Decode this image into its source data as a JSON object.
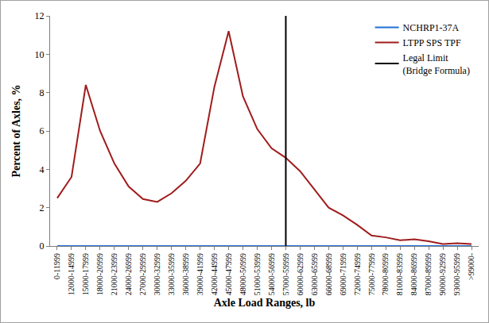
{
  "chart_data": {
    "type": "line",
    "x_label": "Axle Load Ranges, lb",
    "y_label": "Percent of Axles, %",
    "categories": [
      "0-11999",
      "12000-14999",
      "15000-17999",
      "18000-20999",
      "21000-23999",
      "24000-26999",
      "27000-29999",
      "30000-32999",
      "33000-35999",
      "36000-38999",
      "39000-41999",
      "42000-44999",
      "45000-47999",
      "48000-50999",
      "51000-53999",
      "54000-56999",
      "57000-59999",
      "60000-62999",
      "63000-65999",
      "66000-68999",
      "69000-71999",
      "72000-74999",
      "75000-77999",
      "78000-80999",
      "81000-83999",
      "84000-86999",
      "87000-89999",
      "90000-92999",
      "93000-95999",
      ">99000-"
    ],
    "series": [
      {
        "name": "NCHRP1-37A",
        "color": "#1f6fd6",
        "values": [
          0,
          0,
          0,
          0,
          0,
          0,
          0,
          0,
          0,
          0,
          0,
          0,
          0,
          0,
          0,
          0,
          0,
          0,
          0,
          0,
          0,
          0,
          0,
          0,
          0,
          0,
          0,
          0,
          0,
          0
        ]
      },
      {
        "name": "LTPP SPS TPF",
        "color": "#a01c1c",
        "values": [
          2.5,
          3.6,
          8.4,
          6.0,
          4.3,
          3.1,
          2.45,
          2.3,
          2.75,
          3.4,
          4.3,
          8.3,
          11.2,
          7.8,
          6.1,
          5.1,
          4.6,
          3.9,
          2.95,
          2.0,
          1.6,
          1.1,
          0.55,
          0.45,
          0.3,
          0.35,
          0.25,
          0.1,
          0.15,
          0.1
        ]
      },
      {
        "name": "Legal Limit\n(Bridge Formula)",
        "color": "#000000",
        "type": "vline",
        "x": "57000-59999"
      }
    ],
    "ylim": [
      0,
      12
    ],
    "yticks": [
      0,
      2,
      4,
      6,
      8,
      10,
      12
    ],
    "grid": false,
    "legend": "top right"
  }
}
